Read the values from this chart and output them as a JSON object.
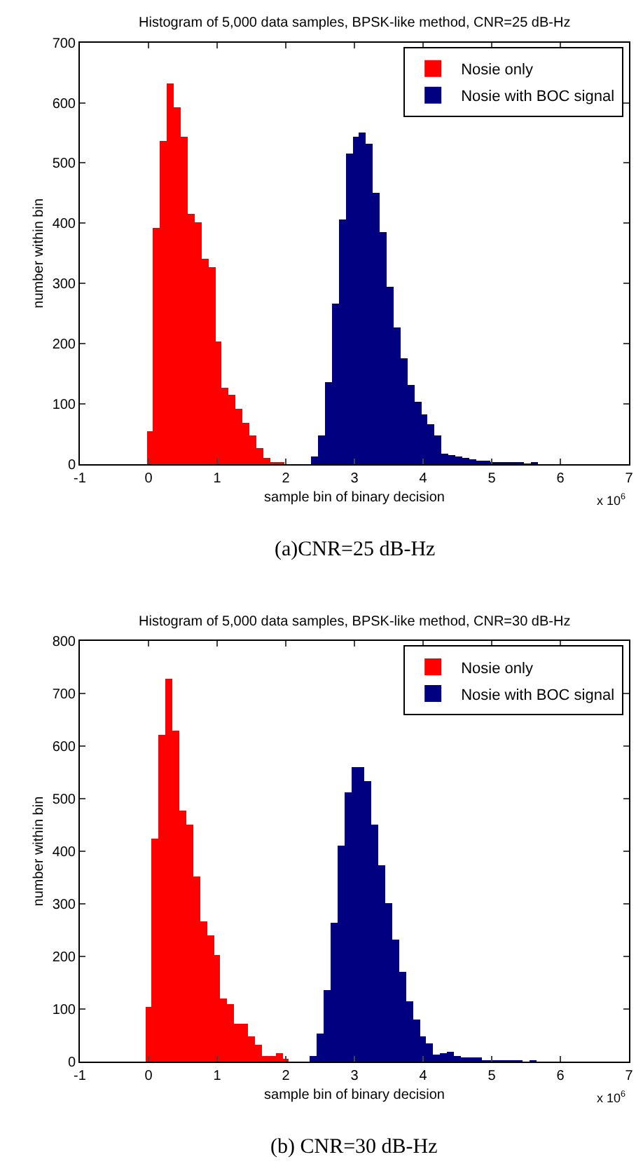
{
  "chart_data": [
    {
      "type": "histogram",
      "title": "Histogram of 5,000 data samples, BPSK-like method, CNR=25 dB-Hz",
      "xlabel": "sample bin of binary decision",
      "ylabel": "number within bin",
      "bins": [
        -0.03,
        0.07,
        0.17,
        0.27,
        0.37,
        0.47,
        0.57,
        0.67,
        0.77,
        0.87,
        0.97,
        1.07,
        1.17,
        1.27,
        1.37,
        1.47,
        1.57,
        1.67,
        1.77,
        1.87,
        1.97,
        2.07,
        2.17,
        2.27,
        2.37,
        2.47,
        2.57,
        2.67,
        2.77,
        2.87,
        2.97,
        3.07,
        3.17,
        3.27,
        3.37,
        3.47,
        3.57,
        3.67,
        3.77,
        3.87,
        3.97,
        4.07,
        4.17,
        4.27,
        4.37,
        4.47,
        4.57,
        4.67,
        4.77,
        4.87,
        4.97,
        5.07,
        5.17,
        5.27,
        5.37,
        5.47,
        5.57,
        5.67
      ],
      "series": [
        {
          "name": "Nosie only",
          "color": "#ff0000",
          "values": [
            55,
            392,
            537,
            633,
            594,
            545,
            416,
            402,
            342,
            328,
            205,
            128,
            116,
            93,
            69,
            48,
            27,
            10,
            4,
            4,
            null,
            null,
            null,
            null,
            null,
            null,
            null,
            null,
            null,
            null,
            null,
            null,
            null,
            null,
            null,
            null,
            null,
            null,
            null,
            null,
            null,
            null,
            null,
            null,
            null,
            null,
            null,
            null,
            null,
            null,
            null,
            null,
            null,
            null,
            null,
            null,
            null
          ]
        },
        {
          "name": "Nosie with BOC signal",
          "color": "#000080",
          "values": [
            null,
            null,
            null,
            null,
            null,
            null,
            null,
            null,
            null,
            null,
            null,
            null,
            null,
            null,
            null,
            null,
            null,
            null,
            null,
            null,
            null,
            null,
            null,
            null,
            12,
            48,
            136,
            267,
            407,
            517,
            545,
            552,
            533,
            452,
            386,
            296,
            228,
            175,
            132,
            105,
            84,
            67,
            48,
            18,
            16,
            12,
            10,
            8,
            6,
            5,
            3,
            2,
            2,
            2,
            2,
            1,
            2
          ]
        }
      ],
      "xlim": [
        -1,
        7
      ],
      "xticks": [
        -1,
        0,
        1,
        2,
        3,
        4,
        5,
        6,
        7
      ],
      "ylim": [
        0,
        700
      ],
      "yticks": [
        0,
        100,
        200,
        300,
        400,
        500,
        600,
        700
      ],
      "legend": "top right",
      "annotations": [
        "x 10$^{6}$",
        "(a)CNR=25 dB-Hz"
      ]
    },
    {
      "type": "histogram",
      "title": "Histogram of 5,000 data samples, BPSK-like method, CNR=30 dB-Hz",
      "xlabel": "sample bin of binary decision",
      "ylabel": "number within bin",
      "bins": [
        -0.05,
        0.05,
        0.15,
        0.25,
        0.35,
        0.45,
        0.55,
        0.65,
        0.75,
        0.85,
        0.95,
        1.05,
        1.15,
        1.25,
        1.35,
        1.45,
        1.55,
        1.65,
        1.75,
        1.85,
        1.95,
        2.05,
        2.15,
        2.25,
        2.35,
        2.45,
        2.55,
        2.65,
        2.75,
        2.85,
        2.95,
        3.05,
        3.15,
        3.25,
        3.35,
        3.45,
        3.55,
        3.65,
        3.75,
        3.85,
        3.95,
        4.05,
        4.15,
        4.25,
        4.35,
        4.45,
        4.55,
        4.65,
        4.75,
        4.85,
        4.95,
        5.05,
        5.15,
        5.25,
        5.35,
        5.45,
        5.55,
        5.65
      ],
      "series": [
        {
          "name": "Nosie only",
          "color": "#ff0000",
          "values": [
            103,
            424,
            621,
            727,
            629,
            477,
            452,
            352,
            266,
            240,
            202,
            120,
            110,
            71,
            71,
            47,
            33,
            12,
            12,
            17,
            5,
            null,
            null,
            null,
            null,
            null,
            null,
            null,
            null,
            null,
            null,
            null,
            null,
            null,
            null,
            null,
            null,
            null,
            null,
            null,
            null,
            null,
            null,
            null,
            null,
            null,
            null,
            null,
            null,
            null,
            null,
            null,
            null,
            null,
            null,
            null,
            null
          ]
        },
        {
          "name": "Nosie with BOC signal",
          "color": "#000080",
          "values": [
            null,
            null,
            null,
            null,
            null,
            null,
            null,
            null,
            null,
            null,
            null,
            null,
            null,
            null,
            null,
            null,
            null,
            null,
            null,
            null,
            null,
            null,
            null,
            null,
            11,
            53,
            136,
            263,
            410,
            512,
            559,
            559,
            534,
            450,
            373,
            302,
            231,
            172,
            115,
            79,
            48,
            36,
            13,
            15,
            20,
            10,
            9,
            8,
            7,
            4,
            2,
            2,
            1,
            3,
            1,
            0,
            1
          ]
        }
      ],
      "xlim": [
        -1,
        7
      ],
      "xticks": [
        -1,
        0,
        1,
        2,
        3,
        4,
        5,
        6,
        7
      ],
      "ylim": [
        0,
        800
      ],
      "yticks": [
        0,
        100,
        200,
        300,
        400,
        500,
        600,
        700,
        800
      ],
      "legend": "top right",
      "annotations": [
        "x 10$^{6}$",
        "(b) CNR=30 dB-Hz"
      ]
    }
  ]
}
